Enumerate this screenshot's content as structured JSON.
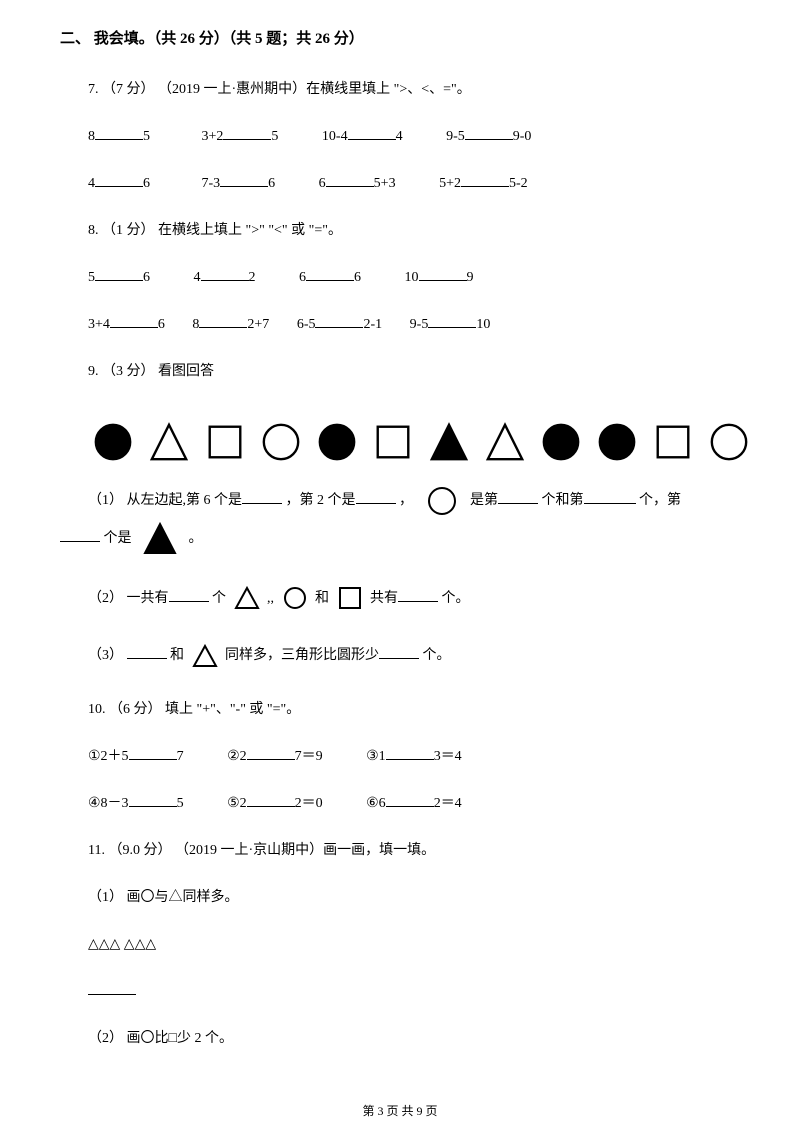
{
  "section": {
    "title": "二、 我会填。（共 26 分）（共 5 题；共 26 分）"
  },
  "q7": {
    "stem": "7. （7 分） （2019 一上·惠州期中）在横线里填上 \">、<、=\"。",
    "r1a": "8",
    "r1b": "5",
    "r1c": "3+2",
    "r1d": "5",
    "r1e": "10-4",
    "r1f": "4",
    "r1g": "9-5",
    "r1h": "9-0",
    "r2a": "4",
    "r2b": "6",
    "r2c": "7-3",
    "r2d": "6",
    "r2e": "6",
    "r2f": "5+3",
    "r2g": "5+2",
    "r2h": "5-2"
  },
  "q8": {
    "stem": "8. （1 分）  在横线上填上 \">\" \"<\" 或 \"=\"。",
    "r1a": "5",
    "r1b": "6",
    "r1c": "4",
    "r1d": "2",
    "r1e": "6",
    "r1f": "6",
    "r1g": "10",
    "r1h": "9",
    "r2a": "3+4",
    "r2b": "6",
    "r2c": "8",
    "r2d": "2+7",
    "r2e": "6-5",
    "r2f": "2-1",
    "r2g": "9-5",
    "r2h": "10"
  },
  "q9": {
    "stem": "9. （3 分）  看图回答",
    "shapes": [
      {
        "type": "circle",
        "fill": "#000000",
        "stroke": "#000000"
      },
      {
        "type": "triangle",
        "fill": "none",
        "stroke": "#000000"
      },
      {
        "type": "square",
        "fill": "none",
        "stroke": "#000000"
      },
      {
        "type": "circle",
        "fill": "none",
        "stroke": "#000000"
      },
      {
        "type": "circle",
        "fill": "#000000",
        "stroke": "#000000"
      },
      {
        "type": "square",
        "fill": "none",
        "stroke": "#000000"
      },
      {
        "type": "triangle",
        "fill": "#000000",
        "stroke": "#000000"
      },
      {
        "type": "triangle",
        "fill": "none",
        "stroke": "#000000"
      },
      {
        "type": "circle",
        "fill": "#000000",
        "stroke": "#000000"
      },
      {
        "type": "circle",
        "fill": "#000000",
        "stroke": "#000000"
      },
      {
        "type": "square",
        "fill": "none",
        "stroke": "#000000"
      },
      {
        "type": "circle",
        "fill": "none",
        "stroke": "#000000"
      }
    ],
    "s1a": "（1）   从左边起,第 6 个是",
    "s1b": "，第 2 个是",
    "s1c": "，",
    "s1d": "是第",
    "s1e": "个和第",
    "s1f": "个，第",
    "s1g": "个是",
    "s1h": " 。",
    "s2a": "（2） 一共有",
    "s2b": "个",
    "s2c": " ,,",
    "s2d": "和",
    "s2e": " 共有",
    "s2f": "个。",
    "s3a": "（3）  ",
    "s3b": "和",
    "s3c": " 同样多，三角形比圆形少",
    "s3d": "个。"
  },
  "q10": {
    "stem": "10. （6 分）  填上 \"+\"、\"-\" 或 \"=\"。",
    "r1a": "①2＋5",
    "r1b": "7",
    "r1c": "②2",
    "r1d": "7＝9",
    "r1e": "③1",
    "r1f": "3＝4",
    "r2a": "④8－3",
    "r2b": "5",
    "r2c": "⑤2",
    "r2d": "2＝0",
    "r2e": "⑥6",
    "r2f": "2＝4"
  },
  "q11": {
    "stem": "11. （9.0 分） （2019 一上·京山期中）画一画，填一填。",
    "s1": "（1） 画〇与△同样多。",
    "s1shapes": "△△△   △△△",
    "s2": "（2） 画〇比□少 2 个。"
  },
  "footer": "第 3 页 共 9 页"
}
